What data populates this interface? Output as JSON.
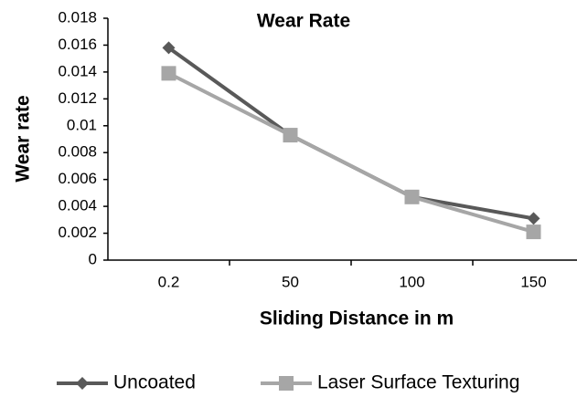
{
  "chart_data": {
    "type": "line",
    "title": "Wear Rate",
    "x_label": "Sliding Distance in m",
    "y_label": "Wear rate",
    "categories": [
      "0.2",
      "50",
      "100",
      "150"
    ],
    "series": [
      {
        "name": "Uncoated",
        "color": "#595959",
        "marker": "diamond",
        "values": [
          0.0158,
          0.0093,
          0.0047,
          0.0031
        ]
      },
      {
        "name": "Laser Surface Texturing",
        "color": "#a6a6a6",
        "marker": "square",
        "values": [
          0.0139,
          0.0093,
          0.0047,
          0.0021
        ]
      }
    ],
    "ylim": [
      0,
      0.018
    ],
    "yticks": [
      0,
      0.002,
      0.004,
      0.006,
      0.008,
      0.01,
      0.012,
      0.014,
      0.016,
      0.018
    ],
    "grid": false,
    "legend": "bottom"
  }
}
